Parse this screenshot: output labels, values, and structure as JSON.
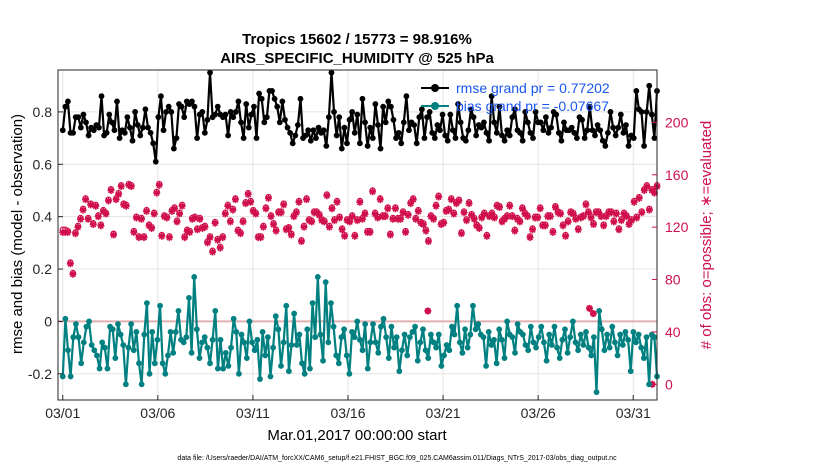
{
  "chart_data": {
    "type": "line",
    "title_line1": "Tropics 15602 / 15773 = 98.916%",
    "title_line2": "AIRS_SPECIFIC_HUMIDITY @ 525 hPa",
    "xlabel": "Mar.01,2017 00:00:00 start",
    "ylabel_left": "rmse and bias (model - observation)",
    "ylabel_right": "# of obs: o=possible; ∗=evaluated",
    "footer": "data file: /Users/raeder/DAI/ATM_forcXX/CAM6_setup/f.e21.FHIST_BGC.f09_025.CAM6assim.011/Diags_NTrS_2017-03/obs_diag_output.nc",
    "xlim": [
      0.75,
      32.25
    ],
    "ylim_left": [
      -0.3,
      0.96
    ],
    "ylim_right": [
      -12,
      240
    ],
    "x_ticks": [
      1,
      6,
      11,
      16,
      21,
      26,
      31
    ],
    "x_tick_labels": [
      "03/01",
      "03/06",
      "03/11",
      "03/16",
      "03/21",
      "03/26",
      "03/31"
    ],
    "y_left_ticks": [
      -0.2,
      0,
      0.2,
      0.4,
      0.6,
      0.8
    ],
    "y_left_tick_labels": [
      "-0.2",
      "0",
      "0.2",
      "0.4",
      "0.6",
      "0.8"
    ],
    "y_right_ticks": [
      0,
      40,
      80,
      120,
      160,
      200
    ],
    "y_right_tick_labels": [
      "0",
      "40",
      "80",
      "120",
      "160",
      "200"
    ],
    "colors": {
      "rmse": "#000000",
      "bias": "#008080",
      "obs": "#d0104c",
      "zero_line": "#e0b0b0",
      "legend_text": "#1a56f0",
      "grid": "#e4e4e4"
    },
    "series": [
      {
        "name": "rmse grand pr = 0.77202",
        "axis": "left",
        "values": [
          0.73,
          0.82,
          0.84,
          0.72,
          0.72,
          0.78,
          0.78,
          0.74,
          0.79,
          0.76,
          0.71,
          0.74,
          0.73,
          0.75,
          0.74,
          0.86,
          0.71,
          0.72,
          0.79,
          0.76,
          0.73,
          0.84,
          0.7,
          0.73,
          0.72,
          0.78,
          0.74,
          0.69,
          0.8,
          0.75,
          0.71,
          0.74,
          0.81,
          0.74,
          0.72,
          0.68,
          0.61,
          0.78,
          0.86,
          0.73,
          0.8,
          0.82,
          0.8,
          0.66,
          0.7,
          0.83,
          0.82,
          0.78,
          0.84,
          0.83,
          0.84,
          0.82,
          0.7,
          0.79,
          0.8,
          0.72,
          0.77,
          0.95,
          0.78,
          0.79,
          0.82,
          0.79,
          0.78,
          0.79,
          0.71,
          0.8,
          0.78,
          0.8,
          0.84,
          0.76,
          0.7,
          0.83,
          0.74,
          0.79,
          0.82,
          0.7,
          0.87,
          0.85,
          0.76,
          0.78,
          0.88,
          0.88,
          0.85,
          0.82,
          0.76,
          0.84,
          0.77,
          0.74,
          0.72,
          0.68,
          0.71,
          0.75,
          0.85,
          0.7,
          0.71,
          0.73,
          0.69,
          0.73,
          0.7,
          0.74,
          0.72,
          0.73,
          0.67,
          0.78,
          0.95,
          0.8,
          0.71,
          0.78,
          0.66,
          0.74,
          0.68,
          0.77,
          0.8,
          0.72,
          0.79,
          0.68,
          0.85,
          0.76,
          0.67,
          0.74,
          0.7,
          0.83,
          0.75,
          0.66,
          0.82,
          0.76,
          0.84,
          0.82,
          0.77,
          0.7,
          0.72,
          0.68,
          0.76,
          0.86,
          0.73,
          0.76,
          0.75,
          0.68,
          0.78,
          0.81,
          0.7,
          0.78,
          0.8,
          0.72,
          0.7,
          0.75,
          0.73,
          0.79,
          0.71,
          0.69,
          0.79,
          0.73,
          0.7,
          0.83,
          0.76,
          0.7,
          0.69,
          0.73,
          0.81,
          0.78,
          0.71,
          0.75,
          0.74,
          0.76,
          0.72,
          0.69,
          0.86,
          0.76,
          0.72,
          0.82,
          0.71,
          0.69,
          0.73,
          0.71,
          0.78,
          0.81,
          0.73,
          0.72,
          0.69,
          0.8,
          0.76,
          0.72,
          0.7,
          0.8,
          0.76,
          0.76,
          0.73,
          0.78,
          0.72,
          0.74,
          0.8,
          0.79,
          0.72,
          0.69,
          0.76,
          0.73,
          0.73,
          0.74,
          0.72,
          0.7,
          0.78,
          0.77,
          0.7,
          0.73,
          0.82,
          0.73,
          0.71,
          0.75,
          0.73,
          0.69,
          0.67,
          0.72,
          0.8,
          0.74,
          0.71,
          0.74,
          0.79,
          0.72,
          0.75,
          0.67,
          0.71,
          0.7,
          0.88,
          0.81,
          0.8,
          0.67,
          0.8,
          0.9,
          0.79,
          0.7,
          0.88
        ]
      },
      {
        "name": "bias grand pr = -0.07667",
        "axis": "left",
        "values": [
          -0.21,
          0.01,
          -0.11,
          -0.21,
          -0.06,
          -0.01,
          -0.06,
          -0.16,
          -0.08,
          -0.02,
          0.0,
          -0.09,
          -0.11,
          -0.13,
          -0.18,
          -0.08,
          -0.1,
          -0.18,
          -0.02,
          -0.03,
          -0.14,
          -0.01,
          -0.05,
          -0.09,
          -0.24,
          -0.1,
          -0.01,
          -0.11,
          -0.04,
          -0.16,
          -0.24,
          -0.05,
          0.07,
          -0.2,
          -0.04,
          -0.16,
          -0.07,
          0.06,
          -0.16,
          -0.2,
          -0.13,
          -0.04,
          -0.12,
          -0.04,
          0.04,
          -0.07,
          -0.08,
          -0.06,
          0.09,
          -0.12,
          0.17,
          -0.03,
          -0.14,
          -0.08,
          -0.06,
          -0.1,
          -0.16,
          -0.07,
          0.04,
          -0.18,
          -0.07,
          -0.18,
          -0.12,
          -0.17,
          -0.1,
          0.01,
          -0.04,
          -0.2,
          -0.05,
          -0.08,
          -0.14,
          0.0,
          -0.08,
          -0.11,
          -0.07,
          -0.22,
          -0.04,
          -0.13,
          -0.06,
          -0.21,
          -0.1,
          0.02,
          -0.03,
          -0.17,
          -0.08,
          0.06,
          -0.19,
          -0.09,
          0.03,
          -0.09,
          -0.05,
          -0.16,
          -0.2,
          -0.03,
          -0.18,
          0.07,
          -0.06,
          0.17,
          -0.05,
          -0.15,
          0.15,
          -0.08,
          0.07,
          -0.02,
          -0.13,
          -0.16,
          -0.06,
          -0.03,
          -0.13,
          -0.2,
          -0.04,
          -0.06,
          0.0,
          -0.07,
          -0.11,
          -0.01,
          -0.18,
          -0.08,
          -0.01,
          -0.08,
          -0.12,
          -0.02,
          0.01,
          -0.06,
          -0.14,
          -0.02,
          -0.1,
          -0.06,
          -0.19,
          -0.11,
          -0.05,
          -0.13,
          -0.06,
          -0.04,
          -0.02,
          -0.15,
          -0.08,
          -0.03,
          -0.11,
          -0.14,
          -0.05,
          -0.08,
          -0.1,
          -0.05,
          -0.17,
          -0.13,
          -0.09,
          -0.11,
          -0.02,
          -0.05,
          0.06,
          -0.08,
          -0.12,
          -0.03,
          -0.1,
          -0.05,
          0.06,
          -0.03,
          -0.01,
          -0.05,
          -0.06,
          -0.17,
          -0.04,
          -0.09,
          -0.07,
          -0.16,
          -0.03,
          -0.07,
          -0.14,
          0.0,
          -0.05,
          -0.06,
          -0.12,
          -0.01,
          -0.04,
          -0.05,
          -0.09,
          -0.11,
          -0.02,
          -0.08,
          -0.1,
          -0.06,
          -0.02,
          -0.08,
          -0.15,
          -0.05,
          -0.09,
          -0.02,
          -0.1,
          -0.14,
          -0.07,
          -0.03,
          -0.12,
          -0.06,
          0.0,
          -0.08,
          -0.11,
          -0.05,
          -0.09,
          -0.04,
          -0.1,
          -0.13,
          -0.06,
          -0.27,
          0.04,
          -0.03,
          -0.11,
          -0.05,
          -0.1,
          -0.02,
          -0.08,
          -0.13,
          -0.05,
          -0.09,
          -0.04,
          -0.07,
          -0.19,
          -0.04,
          -0.08,
          -0.05,
          -0.1,
          -0.14,
          -0.06,
          -0.24,
          -0.05,
          -0.06,
          -0.21
        ]
      },
      {
        "name": "obs_evaluated",
        "axis": "right",
        "marker": "*",
        "values": [
          116,
          116,
          116,
          92,
          84,
          115,
          120,
          126,
          133,
          141,
          126,
          137,
          122,
          136,
          128,
          121,
          132,
          130,
          140,
          148,
          114,
          141,
          145,
          151,
          137,
          136,
          152,
          151,
          116,
          127,
          112,
          126,
          112,
          132,
          121,
          119,
          130,
          146,
          152,
          113,
          128,
          127,
          112,
          132,
          134,
          124,
          130,
          136,
          112,
          117,
          116,
          126,
          127,
          118,
          126,
          119,
          120,
          108,
          112,
          101,
          123,
          110,
          104,
          112,
          130,
          136,
          124,
          133,
          141,
          117,
          115,
          124,
          138,
          145,
          139,
          132,
          130,
          112,
          112,
          120,
          134,
          142,
          128,
          122,
          117,
          131,
          131,
          137,
          118,
          119,
          114,
          128,
          131,
          139,
          109,
          120,
          141,
          125,
          124,
          131,
          131,
          129,
          125,
          124,
          144,
          120,
          134,
          125,
          139,
          127,
          118,
          113,
          125,
          124,
          128,
          113,
          125,
          139,
          126,
          130,
          116,
          116,
          147,
          130,
          127,
          141,
          128,
          128,
          134,
          114,
          126,
          134,
          126,
          126,
          131,
          116,
          129,
          138,
          141,
          126,
          132,
          123,
          122,
          117,
          109,
          128,
          126,
          136,
          143,
          122,
          123,
          132,
          133,
          141,
          130,
          138,
          140,
          115,
          131,
          125,
          138,
          129,
          126,
          121,
          119,
          127,
          130,
          113,
          128,
          130,
          127,
          136,
          135,
          124,
          126,
          128,
          136,
          128,
          117,
          126,
          124,
          134,
          130,
          128,
          112,
          118,
          127,
          127,
          134,
          121,
          121,
          128,
          128,
          116,
          135,
          131,
          130,
          121,
          113,
          124,
          131,
          130,
          126,
          118,
          127,
          128,
          137,
          131,
          127,
          122,
          131,
          131,
          128,
          121,
          128,
          131,
          131,
          124,
          130,
          118,
          125,
          130,
          128,
          122,
          125,
          139,
          127,
          142,
          131,
          148,
          151,
          133,
          148,
          146,
          151
        ]
      },
      {
        "name": "obs_possible",
        "axis": "right",
        "marker": "o",
        "values": [
          118,
          118,
          117,
          93,
          85,
          116,
          121,
          127,
          134,
          142,
          127,
          138,
          123,
          137,
          129,
          122,
          133,
          131,
          141,
          149,
          115,
          142,
          146,
          152,
          138,
          137,
          153,
          152,
          117,
          128,
          113,
          127,
          113,
          133,
          122,
          120,
          131,
          147,
          153,
          114,
          129,
          128,
          113,
          133,
          135,
          125,
          131,
          137,
          113,
          118,
          117,
          127,
          128,
          119,
          127,
          120,
          121,
          109,
          113,
          102,
          124,
          111,
          105,
          113,
          131,
          137,
          125,
          134,
          142,
          118,
          116,
          125,
          139,
          146,
          140,
          133,
          131,
          113,
          113,
          121,
          135,
          143,
          129,
          123,
          118,
          132,
          132,
          138,
          119,
          120,
          115,
          129,
          132,
          140,
          110,
          121,
          142,
          126,
          125,
          132,
          132,
          130,
          126,
          125,
          145,
          121,
          135,
          126,
          140,
          128,
          119,
          114,
          126,
          125,
          129,
          114,
          126,
          140,
          127,
          131,
          117,
          117,
          148,
          131,
          128,
          142,
          129,
          129,
          135,
          115,
          127,
          135,
          127,
          127,
          132,
          117,
          130,
          139,
          142,
          127,
          133,
          124,
          123,
          118,
          110,
          129,
          127,
          137,
          144,
          123,
          124,
          133,
          134,
          142,
          131,
          139,
          141,
          116,
          132,
          126,
          139,
          130,
          127,
          122,
          120,
          128,
          131,
          114,
          129,
          131,
          128,
          137,
          136,
          125,
          127,
          129,
          137,
          129,
          118,
          127,
          125,
          135,
          131,
          129,
          113,
          119,
          128,
          128,
          135,
          122,
          122,
          129,
          129,
          117,
          136,
          132,
          131,
          122,
          114,
          125,
          132,
          131,
          127,
          119,
          128,
          129,
          138,
          132,
          128,
          123,
          132,
          132,
          129,
          122,
          129,
          132,
          132,
          125,
          131,
          119,
          126,
          131,
          129,
          123,
          126,
          140,
          128,
          143,
          132,
          149,
          152,
          134,
          149,
          147,
          152
        ]
      },
      {
        "name": "obs_late_days",
        "axis": "right",
        "points": [
          [
            20.2,
            56
          ],
          [
            28.7,
            58
          ],
          [
            28.9,
            54
          ],
          [
            32.0,
            0
          ]
        ]
      }
    ]
  }
}
